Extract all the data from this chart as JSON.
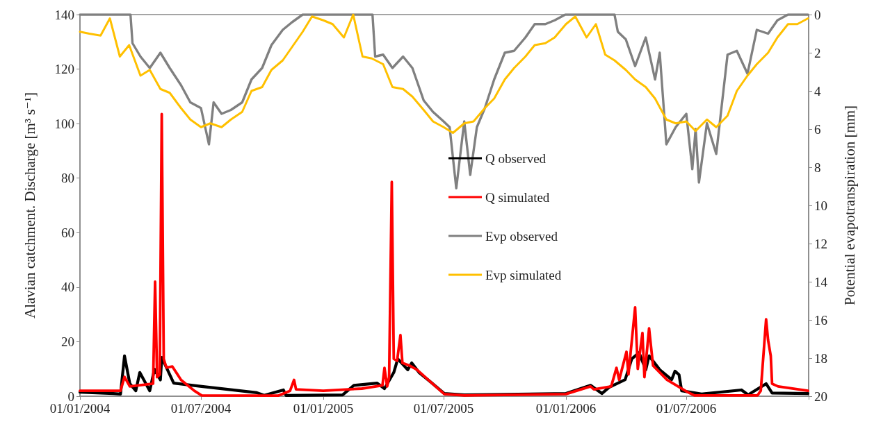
{
  "chart_data": {
    "type": "line",
    "ylabel": "Alavian catchment. Discharge [m³ s⁻¹]",
    "y2label": "Potential evapotranspiration [mm]",
    "xlim": [
      "2004-01-01",
      "2007-01-01"
    ],
    "xticks": [
      {
        "value": "2004-01-01",
        "label": "01/01/2004"
      },
      {
        "value": "2004-07-01",
        "label": "01/07/2004"
      },
      {
        "value": "2005-01-01",
        "label": "01/01/2005"
      },
      {
        "value": "2005-07-01",
        "label": "01/07/2005"
      },
      {
        "value": "2006-01-01",
        "label": "01/01/2006"
      },
      {
        "value": "2006-07-01",
        "label": "01/07/2006"
      },
      {
        "value": "2007-01-01",
        "label": null
      }
    ],
    "ylim": [
      0,
      140
    ],
    "yticks": [
      0,
      20,
      40,
      60,
      80,
      100,
      120,
      140
    ],
    "y2lim": [
      20,
      0
    ],
    "y2ticks": [
      0,
      2,
      4,
      6,
      8,
      10,
      12,
      14,
      16,
      18,
      20
    ],
    "legend": "center",
    "marker": "none",
    "line_style": "solid",
    "series": [
      {
        "name": "Q observed",
        "color": "#000000",
        "x": [
          "2004-01-01",
          "2004-02-20",
          "2004-03-02",
          "2004-03-08",
          "2004-03-16",
          "2004-03-25",
          "2004-03-31",
          "2004-04-15",
          "2004-04-22",
          "2004-05-01",
          "2004-05-03",
          "2004-05-21",
          "2004-07-02",
          "2004-09-23",
          "2004-10-04",
          "2004-11-02",
          "2004-11-06",
          "2005-01-30",
          "2005-02-16",
          "2005-03-23",
          "2005-04-03",
          "2005-04-17",
          "2005-04-23",
          "2005-05-08",
          "2005-05-14",
          "2005-05-25",
          "2005-06-11",
          "2005-07-02",
          "2005-08-01",
          "2006-01-01",
          "2006-02-07",
          "2006-02-24",
          "2006-03-07",
          "2006-03-31",
          "2006-04-10",
          "2006-04-21",
          "2006-05-01",
          "2006-05-06",
          "2006-05-22",
          "2006-06-09",
          "2006-06-14",
          "2006-06-20",
          "2006-06-24",
          "2006-07-24",
          "2006-09-22",
          "2006-10-02",
          "2006-10-29",
          "2006-11-07",
          "2006-12-31"
        ],
        "values": [
          1.5,
          1.0,
          0.8,
          14.8,
          4.6,
          2.0,
          8.7,
          2.0,
          9.9,
          6.0,
          14.2,
          4.8,
          3.6,
          1.3,
          0.3,
          2.3,
          0.3,
          0.5,
          4.0,
          4.8,
          2.8,
          8.7,
          13.7,
          9.7,
          12.2,
          8.7,
          5.3,
          1.0,
          0.5,
          1.0,
          4.0,
          1.0,
          3.3,
          6.1,
          13.7,
          16.0,
          9.7,
          14.8,
          9.7,
          6.1,
          9.2,
          7.9,
          2.0,
          0.8,
          2.3,
          0.5,
          4.6,
          1.2,
          1.0
        ]
      },
      {
        "name": "Q simulated",
        "color": "#ff0000",
        "x": [
          "2004-01-01",
          "2004-03-02",
          "2004-03-08",
          "2004-03-16",
          "2004-04-20",
          "2004-04-23",
          "2004-04-26",
          "2004-04-30",
          "2004-05-03",
          "2004-05-06",
          "2004-05-10",
          "2004-05-19",
          "2004-06-01",
          "2004-06-21",
          "2004-07-02",
          "2004-10-25",
          "2004-11-12",
          "2004-11-18",
          "2004-11-21",
          "2005-01-01",
          "2005-02-28",
          "2005-03-31",
          "2005-04-03",
          "2005-04-07",
          "2005-04-10",
          "2005-04-14",
          "2005-04-17",
          "2005-04-22",
          "2005-04-27",
          "2005-04-30",
          "2005-05-11",
          "2005-05-22",
          "2005-06-11",
          "2005-07-02",
          "2005-08-01",
          "2006-01-01",
          "2006-02-07",
          "2006-02-12",
          "2006-03-10",
          "2006-03-18",
          "2006-03-22",
          "2006-04-02",
          "2006-04-05",
          "2006-04-15",
          "2006-04-19",
          "2006-04-26",
          "2006-04-29",
          "2006-05-06",
          "2006-05-12",
          "2006-06-02",
          "2006-07-03",
          "2006-07-13",
          "2006-10-16",
          "2006-10-21",
          "2006-10-29",
          "2006-11-01",
          "2006-11-05",
          "2006-11-07",
          "2006-11-16",
          "2006-12-31"
        ],
        "values": [
          2.0,
          2.0,
          7.1,
          3.6,
          4.6,
          42.0,
          7.0,
          8.0,
          103.5,
          13.7,
          10.5,
          10.9,
          6.0,
          2.0,
          0.3,
          0.2,
          2.0,
          6.0,
          2.5,
          2.0,
          2.8,
          4.0,
          10.4,
          3.6,
          7.0,
          78.6,
          13.7,
          13.0,
          22.4,
          12.2,
          11.2,
          9.7,
          5.3,
          0.8,
          0.3,
          0.8,
          3.6,
          2.5,
          3.6,
          10.4,
          6.0,
          16.3,
          8.0,
          32.6,
          10.0,
          23.2,
          7.0,
          24.9,
          11.2,
          6.0,
          1.5,
          0.3,
          0.3,
          2.0,
          28.2,
          20.6,
          14.8,
          4.6,
          3.6,
          2.0
        ]
      },
      {
        "name": "Evp observed",
        "color": "#808080",
        "axis": "y2",
        "x": [
          "2004-01-01",
          "2004-03-17",
          "2004-03-20",
          "2004-04-01",
          "2004-04-15",
          "2004-05-01",
          "2004-05-15",
          "2004-06-01",
          "2004-06-15",
          "2004-07-01",
          "2004-07-13",
          "2004-07-20",
          "2004-08-01",
          "2004-08-15",
          "2004-09-01",
          "2004-09-15",
          "2004-10-01",
          "2004-10-15",
          "2004-11-01",
          "2004-11-15",
          "2004-12-01",
          "2005-03-16",
          "2005-03-20",
          "2005-04-01",
          "2005-04-15",
          "2005-05-01",
          "2005-05-15",
          "2005-06-01",
          "2005-06-15",
          "2005-07-01",
          "2005-07-10",
          "2005-07-20",
          "2005-08-01",
          "2005-08-10",
          "2005-08-20",
          "2005-09-01",
          "2005-09-15",
          "2005-10-01",
          "2005-10-15",
          "2005-11-01",
          "2005-11-15",
          "2005-12-01",
          "2005-12-15",
          "2005-12-31",
          "2006-03-15",
          "2006-03-20",
          "2006-04-01",
          "2006-04-15",
          "2006-05-01",
          "2006-05-15",
          "2006-05-22",
          "2006-06-01",
          "2006-06-15",
          "2006-07-01",
          "2006-07-10",
          "2006-07-15",
          "2006-07-20",
          "2006-08-01",
          "2006-08-15",
          "2006-09-01",
          "2006-09-15",
          "2006-10-01",
          "2006-10-15",
          "2006-11-01",
          "2006-11-15",
          "2006-12-01",
          "2006-12-31"
        ],
        "values": [
          0,
          0,
          1.5,
          2.2,
          2.8,
          2.0,
          2.8,
          3.7,
          4.6,
          4.9,
          6.8,
          4.6,
          5.2,
          5.0,
          4.6,
          3.4,
          2.8,
          1.6,
          0.8,
          0.4,
          0,
          0,
          2.2,
          2.1,
          2.8,
          2.2,
          2.8,
          4.5,
          5.1,
          5.6,
          5.9,
          9.1,
          5.6,
          8.4,
          5.9,
          4.9,
          3.4,
          2.0,
          1.9,
          1.2,
          0.5,
          0.5,
          0.3,
          0,
          0,
          0.9,
          1.3,
          2.7,
          1.2,
          3.4,
          2.0,
          6.8,
          5.9,
          5.2,
          8.1,
          6.0,
          8.8,
          5.7,
          7.3,
          2.1,
          1.9,
          3.1,
          0.8,
          1.0,
          0.3,
          0,
          0
        ]
      },
      {
        "name": "Evp simulated",
        "color": "#ffc000",
        "axis": "y2",
        "x": [
          "2004-01-01",
          "2004-01-15",
          "2004-02-01",
          "2004-02-15",
          "2004-03-01",
          "2004-03-15",
          "2004-04-01",
          "2004-04-15",
          "2004-05-01",
          "2004-05-15",
          "2004-06-01",
          "2004-06-15",
          "2004-07-01",
          "2004-07-15",
          "2004-08-01",
          "2004-08-15",
          "2004-09-01",
          "2004-09-15",
          "2004-10-01",
          "2004-10-15",
          "2004-11-01",
          "2004-11-15",
          "2004-12-01",
          "2004-12-15",
          "2005-01-01",
          "2005-01-15",
          "2005-02-01",
          "2005-02-15",
          "2005-03-01",
          "2005-03-15",
          "2005-04-01",
          "2005-04-15",
          "2005-05-01",
          "2005-05-15",
          "2005-06-01",
          "2005-06-15",
          "2005-07-01",
          "2005-07-15",
          "2005-08-01",
          "2005-08-15",
          "2005-09-01",
          "2005-09-15",
          "2005-10-01",
          "2005-10-15",
          "2005-11-01",
          "2005-11-15",
          "2005-12-01",
          "2005-12-15",
          "2006-01-01",
          "2006-01-15",
          "2006-02-01",
          "2006-02-15",
          "2006-03-01",
          "2006-03-15",
          "2006-04-01",
          "2006-04-15",
          "2006-05-01",
          "2006-05-15",
          "2006-06-01",
          "2006-06-15",
          "2006-07-01",
          "2006-07-15",
          "2006-08-01",
          "2006-08-15",
          "2006-09-01",
          "2006-09-15",
          "2006-10-01",
          "2006-10-15",
          "2006-11-01",
          "2006-11-15",
          "2006-12-01",
          "2006-12-15",
          "2006-12-31"
        ],
        "values": [
          0.9,
          1.0,
          1.1,
          0.2,
          2.2,
          1.6,
          3.2,
          2.9,
          3.9,
          4.1,
          4.9,
          5.5,
          5.9,
          5.7,
          5.9,
          5.5,
          5.1,
          4.0,
          3.8,
          2.9,
          2.4,
          1.7,
          0.9,
          0.1,
          0.3,
          0.5,
          1.2,
          0.0,
          2.2,
          2.3,
          2.6,
          3.8,
          3.9,
          4.3,
          5.0,
          5.6,
          5.9,
          6.2,
          5.7,
          5.6,
          4.9,
          4.4,
          3.4,
          2.8,
          2.2,
          1.6,
          1.5,
          1.2,
          0.5,
          0.1,
          1.2,
          0.5,
          2.1,
          2.4,
          2.9,
          3.4,
          3.8,
          4.4,
          5.5,
          5.7,
          5.6,
          6.1,
          5.5,
          5.9,
          5.3,
          4.0,
          3.2,
          2.6,
          2.0,
          1.2,
          0.5,
          0.5,
          0.2
        ]
      }
    ]
  }
}
